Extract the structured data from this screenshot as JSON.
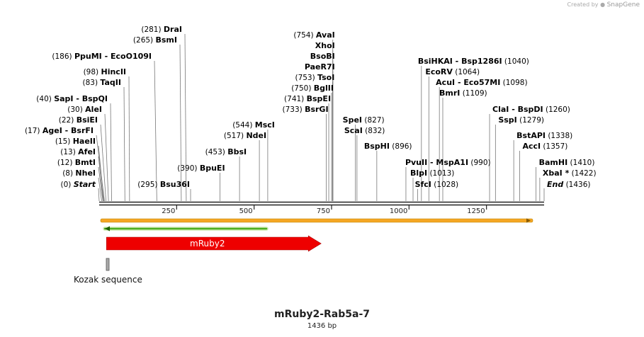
{
  "branding": {
    "prefix": "Created by",
    "name": "SnapGene"
  },
  "plasmid": {
    "name": "mRuby2-Rab5a-7",
    "length_label": "1436 bp",
    "length": 1436
  },
  "ruler": {
    "ticks": [
      250,
      500,
      750,
      1000,
      1250
    ]
  },
  "colors": {
    "orange_bar": "#f5a623",
    "green_bar": "#4caf22",
    "feature_red": "#ee0000",
    "feature_grey": "#a9a9a9",
    "backbone": "#222222",
    "label_text": "#000000"
  },
  "features": [
    {
      "name": "mRuby2",
      "type": "arrow",
      "start": 3,
      "end": 714
    },
    {
      "name": "Kozak sequence",
      "type": "box",
      "start": 0,
      "end": 10
    }
  ],
  "enzymes": [
    {
      "name": "Start",
      "pos_label": "(0)",
      "pos": 0,
      "italic": true
    },
    {
      "name": "NheI",
      "pos_label": "(8)",
      "pos": 8
    },
    {
      "name": "BmtI",
      "pos_label": "(12)",
      "pos": 12
    },
    {
      "name": "AfeI",
      "pos_label": "(13)",
      "pos": 13
    },
    {
      "name": "HaeII",
      "pos_label": "(15)",
      "pos": 15
    },
    {
      "name": "AgeI  -  BsrFI",
      "pos_label": "(17)",
      "pos": 17
    },
    {
      "name": "BsiEI",
      "pos_label": "(22)",
      "pos": 22
    },
    {
      "name": "AleI",
      "pos_label": "(30)",
      "pos": 30
    },
    {
      "name": "SapI  -  BspQI",
      "pos_label": "(40)",
      "pos": 40
    },
    {
      "name": "TaqII",
      "pos_label": "(83)",
      "pos": 83
    },
    {
      "name": "HincII",
      "pos_label": "(98)",
      "pos": 98
    },
    {
      "name": "PpuMI  -  EcoO109I",
      "pos_label": "(186)",
      "pos": 186
    },
    {
      "name": "BsmI",
      "pos_label": "(265)",
      "pos": 265
    },
    {
      "name": "DraI",
      "pos_label": "(281)",
      "pos": 281
    },
    {
      "name": "Bsu36I",
      "pos_label": "(295)",
      "pos": 295
    },
    {
      "name": "BpuEI",
      "pos_label": "(390)",
      "pos": 390
    },
    {
      "name": "BbsI",
      "pos_label": "(453)",
      "pos": 453
    },
    {
      "name": "NdeI",
      "pos_label": "(517)",
      "pos": 517
    },
    {
      "name": "MscI",
      "pos_label": "(544)",
      "pos": 544
    },
    {
      "name": "BsrGI",
      "pos_label": "(733)",
      "pos": 733
    },
    {
      "name": "BspEI",
      "pos_label": "(741)",
      "pos": 741
    },
    {
      "name": "BglII",
      "pos_label": "(750)",
      "pos": 750
    },
    {
      "name": "TsoI",
      "pos_label": "(753)",
      "pos": 753
    },
    {
      "name": "PaeR7I",
      "pos_label": "",
      "pos": 754
    },
    {
      "name": "BsoBI",
      "pos_label": "",
      "pos": 754
    },
    {
      "name": "XhoI",
      "pos_label": "",
      "pos": 754
    },
    {
      "name": "AvaI",
      "pos_label": "(754)",
      "pos": 754
    },
    {
      "name": "SpeI",
      "pos_label": "(827)",
      "pos": 827
    },
    {
      "name": "ScaI",
      "pos_label": "(832)",
      "pos": 832
    },
    {
      "name": "BspHI",
      "pos_label": "(896)",
      "pos": 896
    },
    {
      "name": "PvuII  -  MspA1I",
      "pos_label": "(990)",
      "pos": 990
    },
    {
      "name": "BlpI",
      "pos_label": "(1013)",
      "pos": 1013
    },
    {
      "name": "SfcI",
      "pos_label": "(1028)",
      "pos": 1028
    },
    {
      "name": "BsiHKAI  -  Bsp1286I",
      "pos_label": "(1040)",
      "pos": 1040
    },
    {
      "name": "EcoRV",
      "pos_label": "(1064)",
      "pos": 1064
    },
    {
      "name": "AcuI  -  Eco57MI",
      "pos_label": "(1098)",
      "pos": 1098
    },
    {
      "name": "BmrI",
      "pos_label": "(1109)",
      "pos": 1109
    },
    {
      "name": "ClaI  -  BspDI",
      "pos_label": "(1260)",
      "pos": 1260
    },
    {
      "name": "SspI",
      "pos_label": "(1279)",
      "pos": 1279
    },
    {
      "name": "BstAPI",
      "pos_label": "(1338)",
      "pos": 1338
    },
    {
      "name": "AccI",
      "pos_label": "(1357)",
      "pos": 1357
    },
    {
      "name": "BamHI",
      "pos_label": "(1410)",
      "pos": 1410
    },
    {
      "name": "XbaI *",
      "pos_label": "(1422)",
      "pos": 1422
    },
    {
      "name": "End",
      "pos_label": "(1436)",
      "pos": 1436,
      "italic": true
    }
  ]
}
